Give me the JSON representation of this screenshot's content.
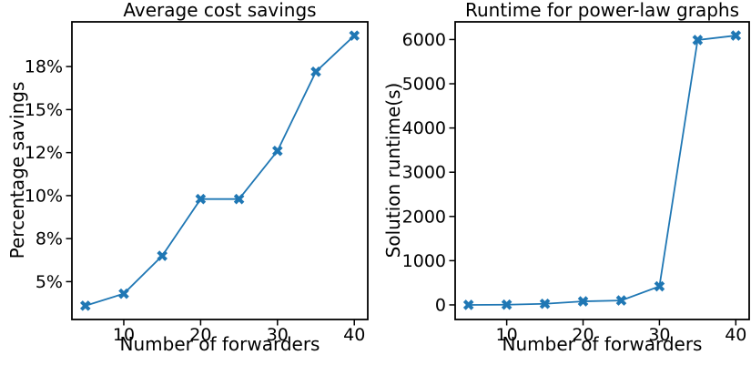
{
  "figure": {
    "background": "#ffffff",
    "accent_color": "#1f77b4",
    "axis_color": "#000000"
  },
  "chart_data": [
    {
      "type": "line",
      "title": "Average cost savings",
      "xlabel": "Number of forwarders",
      "ylabel": "Percentage savings",
      "x": [
        5,
        10,
        15,
        20,
        25,
        30,
        35,
        40
      ],
      "y": [
        3.6,
        4.3,
        6.5,
        9.8,
        9.8,
        12.6,
        17.2,
        19.3
      ],
      "xlim": [
        3.25,
        41.75
      ],
      "ylim": [
        2.8,
        20.1
      ],
      "xticks": {
        "values": [
          10,
          20,
          30,
          40
        ],
        "labels": [
          "10",
          "20",
          "30",
          "40"
        ]
      },
      "yticks": {
        "values": [
          5,
          7.5,
          10,
          12.5,
          15,
          17.5
        ],
        "labels": [
          "5%",
          "8%",
          "10%",
          "12%",
          "15%",
          "18%"
        ]
      },
      "color": "#1f77b4",
      "marker": "X",
      "grid": false,
      "legend": null
    },
    {
      "type": "line",
      "title": "Runtime for power-law graphs",
      "xlabel": "Number of forwarders",
      "ylabel": "Solution runtime(s)",
      "x": [
        5,
        10,
        15,
        20,
        25,
        30,
        35,
        40
      ],
      "y": [
        0,
        5,
        25,
        80,
        100,
        420,
        5990,
        6090
      ],
      "xlim": [
        3.25,
        41.75
      ],
      "ylim": [
        -330,
        6400
      ],
      "xticks": {
        "values": [
          10,
          20,
          30,
          40
        ],
        "labels": [
          "10",
          "20",
          "30",
          "40"
        ]
      },
      "yticks": {
        "values": [
          0,
          1000,
          2000,
          3000,
          4000,
          5000,
          6000
        ],
        "labels": [
          "0",
          "1000",
          "2000",
          "3000",
          "4000",
          "5000",
          "6000"
        ]
      },
      "color": "#1f77b4",
      "marker": "X",
      "grid": false,
      "legend": null
    }
  ]
}
